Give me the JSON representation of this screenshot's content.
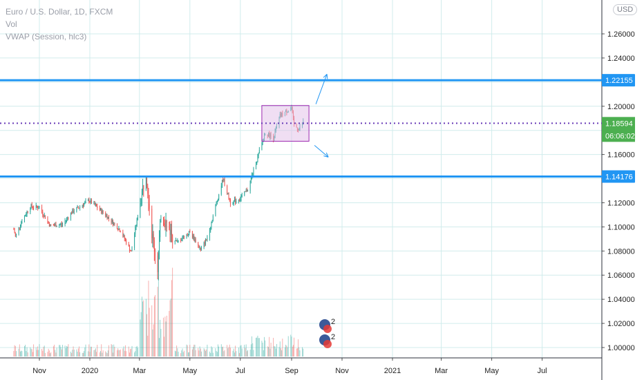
{
  "legend": {
    "symbol": "Euro / U.S. Dollar, 1D, FXCM",
    "volume": "Vol",
    "vwap": "VWAP (Session, hlc3)"
  },
  "currency_button": "USD",
  "colors": {
    "up": "#26a69a",
    "down": "#ef5350",
    "hline": "#2196f3",
    "dotted": "#673ab7",
    "range_fill": "#e1bee7",
    "range_border": "#9c27b0",
    "price_tag": "#4caf50",
    "grid": "#d0ecec"
  },
  "chart_data": {
    "type": "candlestick",
    "y_axis": {
      "ticks": [
        "1.26000",
        "1.24000",
        "1.22000",
        "1.20000",
        "1.18000",
        "1.16000",
        "1.14000",
        "1.12000",
        "1.10000",
        "1.08000",
        "1.06000",
        "1.04000",
        "1.02000",
        "1.00000"
      ],
      "range": [
        0.995,
        1.275
      ]
    },
    "x_axis": {
      "ticks": [
        "Nov",
        "2020",
        "Mar",
        "May",
        "Jul",
        "Sep",
        "Nov",
        "2021",
        "Mar",
        "May",
        "Jul"
      ]
    },
    "horizontal_lines": [
      {
        "value": 1.22155,
        "label": "1.22155"
      },
      {
        "value": 1.14176,
        "label": "1.14176"
      }
    ],
    "current_price": {
      "value": 1.18594,
      "label": "1.18594",
      "countdown": "06:06:02"
    },
    "range_box": {
      "top": 1.2006,
      "bottom": 1.171,
      "start": "2020-07-27",
      "end": "2020-09-22"
    },
    "price_path": [
      {
        "date": "2019-10-01",
        "close": 1.098
      },
      {
        "date": "2019-10-03",
        "close": 1.092
      },
      {
        "date": "2019-10-10",
        "close": 1.104
      },
      {
        "date": "2019-10-21",
        "close": 1.117
      },
      {
        "date": "2019-11-01",
        "close": 1.116
      },
      {
        "date": "2019-11-14",
        "close": 1.101
      },
      {
        "date": "2019-11-29",
        "close": 1.102
      },
      {
        "date": "2019-12-10",
        "close": 1.112
      },
      {
        "date": "2019-12-31",
        "close": 1.122
      },
      {
        "date": "2020-01-20",
        "close": 1.11
      },
      {
        "date": "2020-02-07",
        "close": 1.097
      },
      {
        "date": "2020-02-20",
        "close": 1.079
      },
      {
        "date": "2020-03-09",
        "close": 1.147
      },
      {
        "date": "2020-03-16",
        "close": 1.095
      },
      {
        "date": "2020-03-23",
        "close": 1.066
      },
      {
        "date": "2020-03-27",
        "close": 1.111
      },
      {
        "date": "2020-04-15",
        "close": 1.087
      },
      {
        "date": "2020-05-01",
        "close": 1.096
      },
      {
        "date": "2020-05-14",
        "close": 1.081
      },
      {
        "date": "2020-05-22",
        "close": 1.091
      },
      {
        "date": "2020-06-10",
        "close": 1.14
      },
      {
        "date": "2020-06-19",
        "close": 1.12
      },
      {
        "date": "2020-06-30",
        "close": 1.123
      },
      {
        "date": "2020-07-10",
        "close": 1.131
      },
      {
        "date": "2020-07-31",
        "close": 1.178
      },
      {
        "date": "2020-08-10",
        "close": 1.174
      },
      {
        "date": "2020-08-18",
        "close": 1.192
      },
      {
        "date": "2020-09-01",
        "close": 1.199
      },
      {
        "date": "2020-09-04",
        "close": 1.184
      },
      {
        "date": "2020-09-10",
        "close": 1.181
      },
      {
        "date": "2020-09-15",
        "close": 1.187
      }
    ],
    "events": [
      {
        "label": "2"
      },
      {
        "label": "2"
      }
    ]
  }
}
